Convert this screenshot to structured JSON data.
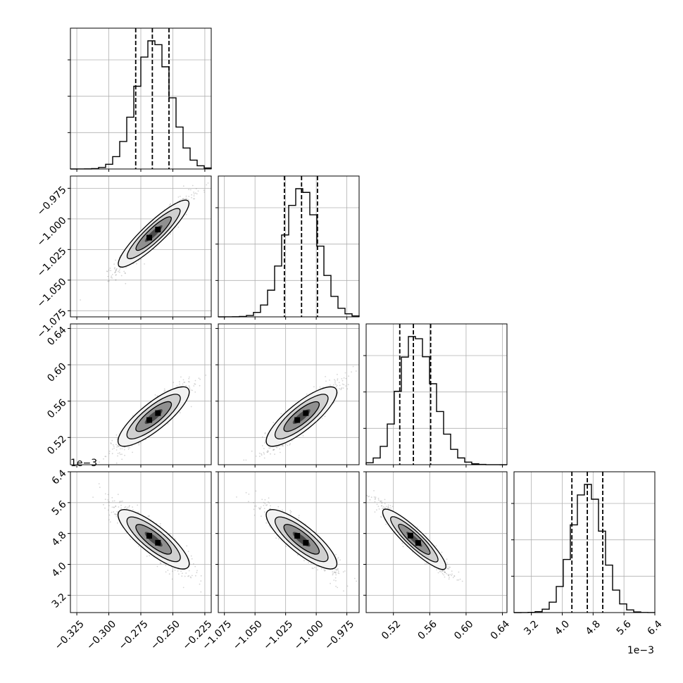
{
  "chart_data": {
    "type": "corner",
    "grid": true,
    "parameters": [
      {
        "range": [
          -0.33,
          -0.22
        ],
        "ticks": [
          -0.325,
          -0.3,
          -0.275,
          -0.25,
          -0.225
        ],
        "tick_labels": [
          "−0.325",
          "−0.300",
          "−0.275",
          "−0.250",
          "−0.225"
        ],
        "offset_label": "",
        "mean": -0.265,
        "sd": 0.0135,
        "quantiles": [
          -0.279,
          -0.266,
          -0.253
        ]
      },
      {
        "range": [
          -1.08,
          -0.965
        ],
        "ticks": [
          -1.075,
          -1.05,
          -1.025,
          -1.0,
          -0.975
        ],
        "tick_labels": [
          "−1.075",
          "−1.050",
          "−1.025",
          "−1.000",
          "−0.975"
        ],
        "offset_label": "",
        "mean": -1.012,
        "sd": 0.014,
        "quantiles": [
          -1.026,
          -1.012,
          -0.999
        ]
      },
      {
        "range": [
          0.49,
          0.645
        ],
        "ticks": [
          0.52,
          0.56,
          0.6,
          0.64
        ],
        "tick_labels": [
          "0.52",
          "0.56",
          "0.60",
          "0.64"
        ],
        "offset_label": "",
        "mean": 0.543,
        "sd": 0.017,
        "quantiles": [
          0.527,
          0.542,
          0.561
        ]
      },
      {
        "range": [
          2.75,
          6.4
        ],
        "ticks": [
          3.2,
          4.0,
          4.8,
          5.6,
          6.4
        ],
        "tick_labels": [
          "3.2",
          "4.0",
          "4.8",
          "5.6",
          "6.4"
        ],
        "offset_label": "1e−3",
        "mean": 4.65,
        "sd": 0.4,
        "quantiles": [
          4.25,
          4.65,
          5.05
        ]
      }
    ],
    "correlations": {
      "1-0": 0.95,
      "2-0": 0.9,
      "2-1": 0.9,
      "3-0": -0.9,
      "3-1": -0.9,
      "3-2": -0.95
    },
    "histogram_bins": 20,
    "contour_levels": 3,
    "colors": {
      "line": "#000000",
      "scatter": "#888888",
      "grid": "#b0b0b0",
      "fill": [
        "#f2f2f2",
        "#d0d0d0",
        "#909090",
        "#4a4a4a"
      ]
    }
  }
}
